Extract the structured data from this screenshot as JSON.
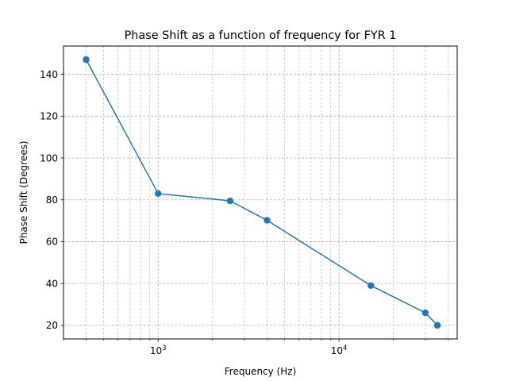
{
  "chart_data": {
    "type": "line",
    "title": "Phase Shift as a function of frequency for FYR 1",
    "xlabel": "Frequency (Hz)",
    "ylabel": "Phase Shift (Degrees)",
    "xscale": "log",
    "xlim": [
      300,
      45000
    ],
    "ylim": [
      13.5,
      153.5
    ],
    "grid": true,
    "grid_style": "dashed",
    "legend": "none",
    "x_tick_labels": [
      {
        "value": 1000,
        "base": "10",
        "exponent": "3"
      },
      {
        "value": 10000,
        "base": "10",
        "exponent": "4"
      }
    ],
    "y_ticks": [
      20,
      40,
      60,
      80,
      100,
      120,
      140
    ],
    "series": [
      {
        "color": "#1f77b4",
        "marker": "circle",
        "x": [
          400,
          1000,
          2500,
          4000,
          15000,
          30000,
          35000
        ],
        "y": [
          147,
          83,
          79.5,
          70.2,
          39,
          26,
          20
        ]
      }
    ]
  }
}
